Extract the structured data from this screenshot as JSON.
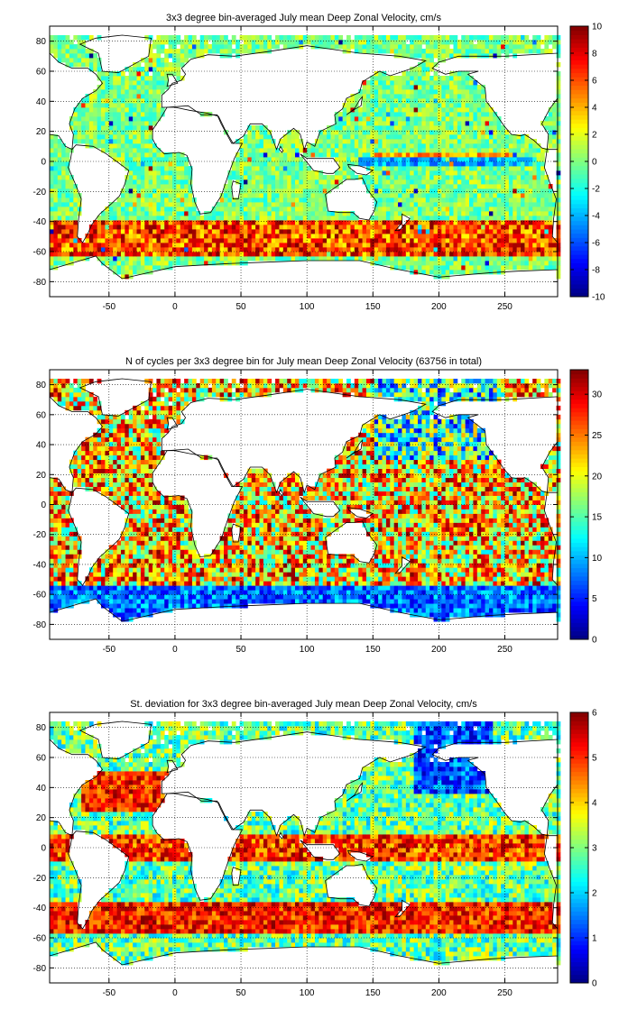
{
  "chart_data": [
    {
      "type": "heatmap",
      "title": "3x3 degree bin-averaged July mean Deep Zonal Velocity, cm/s",
      "xlabel": "",
      "ylabel": "",
      "xlim": [
        -95,
        290
      ],
      "ylim": [
        -90,
        90
      ],
      "xticks": [
        -50,
        0,
        50,
        100,
        150,
        200,
        250
      ],
      "yticks": [
        -80,
        -60,
        -40,
        -20,
        0,
        20,
        40,
        60,
        80
      ],
      "colorbar": {
        "range": [
          -10,
          10
        ],
        "ticks": [
          -10,
          -8,
          -6,
          -4,
          -2,
          0,
          2,
          4,
          6,
          8,
          10
        ]
      },
      "bin_size_deg": 3,
      "pattern": "velocity",
      "grid": true
    },
    {
      "type": "heatmap",
      "title": "N of cycles per 3x3 degree bin for July mean Deep Zonal Velocity (63756 in total)",
      "xlabel": "",
      "ylabel": "",
      "xlim": [
        -95,
        290
      ],
      "ylim": [
        -90,
        90
      ],
      "xticks": [
        -50,
        0,
        50,
        100,
        150,
        200,
        250
      ],
      "yticks": [
        -80,
        -60,
        -40,
        -20,
        0,
        20,
        40,
        60,
        80
      ],
      "colorbar": {
        "range": [
          0,
          33
        ],
        "ticks": [
          0,
          5,
          10,
          15,
          20,
          25,
          30
        ]
      },
      "bin_size_deg": 3,
      "pattern": "count",
      "grid": true
    },
    {
      "type": "heatmap",
      "title": "St. deviation for 3x3 degree bin-averaged July mean Deep Zonal Velocity, cm/s",
      "xlabel": "",
      "ylabel": "",
      "xlim": [
        -95,
        290
      ],
      "ylim": [
        -90,
        90
      ],
      "xticks": [
        -50,
        0,
        50,
        100,
        150,
        200,
        250
      ],
      "yticks": [
        -80,
        -60,
        -40,
        -20,
        0,
        20,
        40,
        60,
        80
      ],
      "colorbar": {
        "range": [
          0,
          6
        ],
        "ticks": [
          0,
          1,
          2,
          3,
          4,
          5,
          6
        ]
      },
      "bin_size_deg": 3,
      "pattern": "stddev",
      "grid": true
    }
  ],
  "colors": {
    "land": "#ffffff",
    "coastline": "#000000",
    "colormap": "jet"
  }
}
